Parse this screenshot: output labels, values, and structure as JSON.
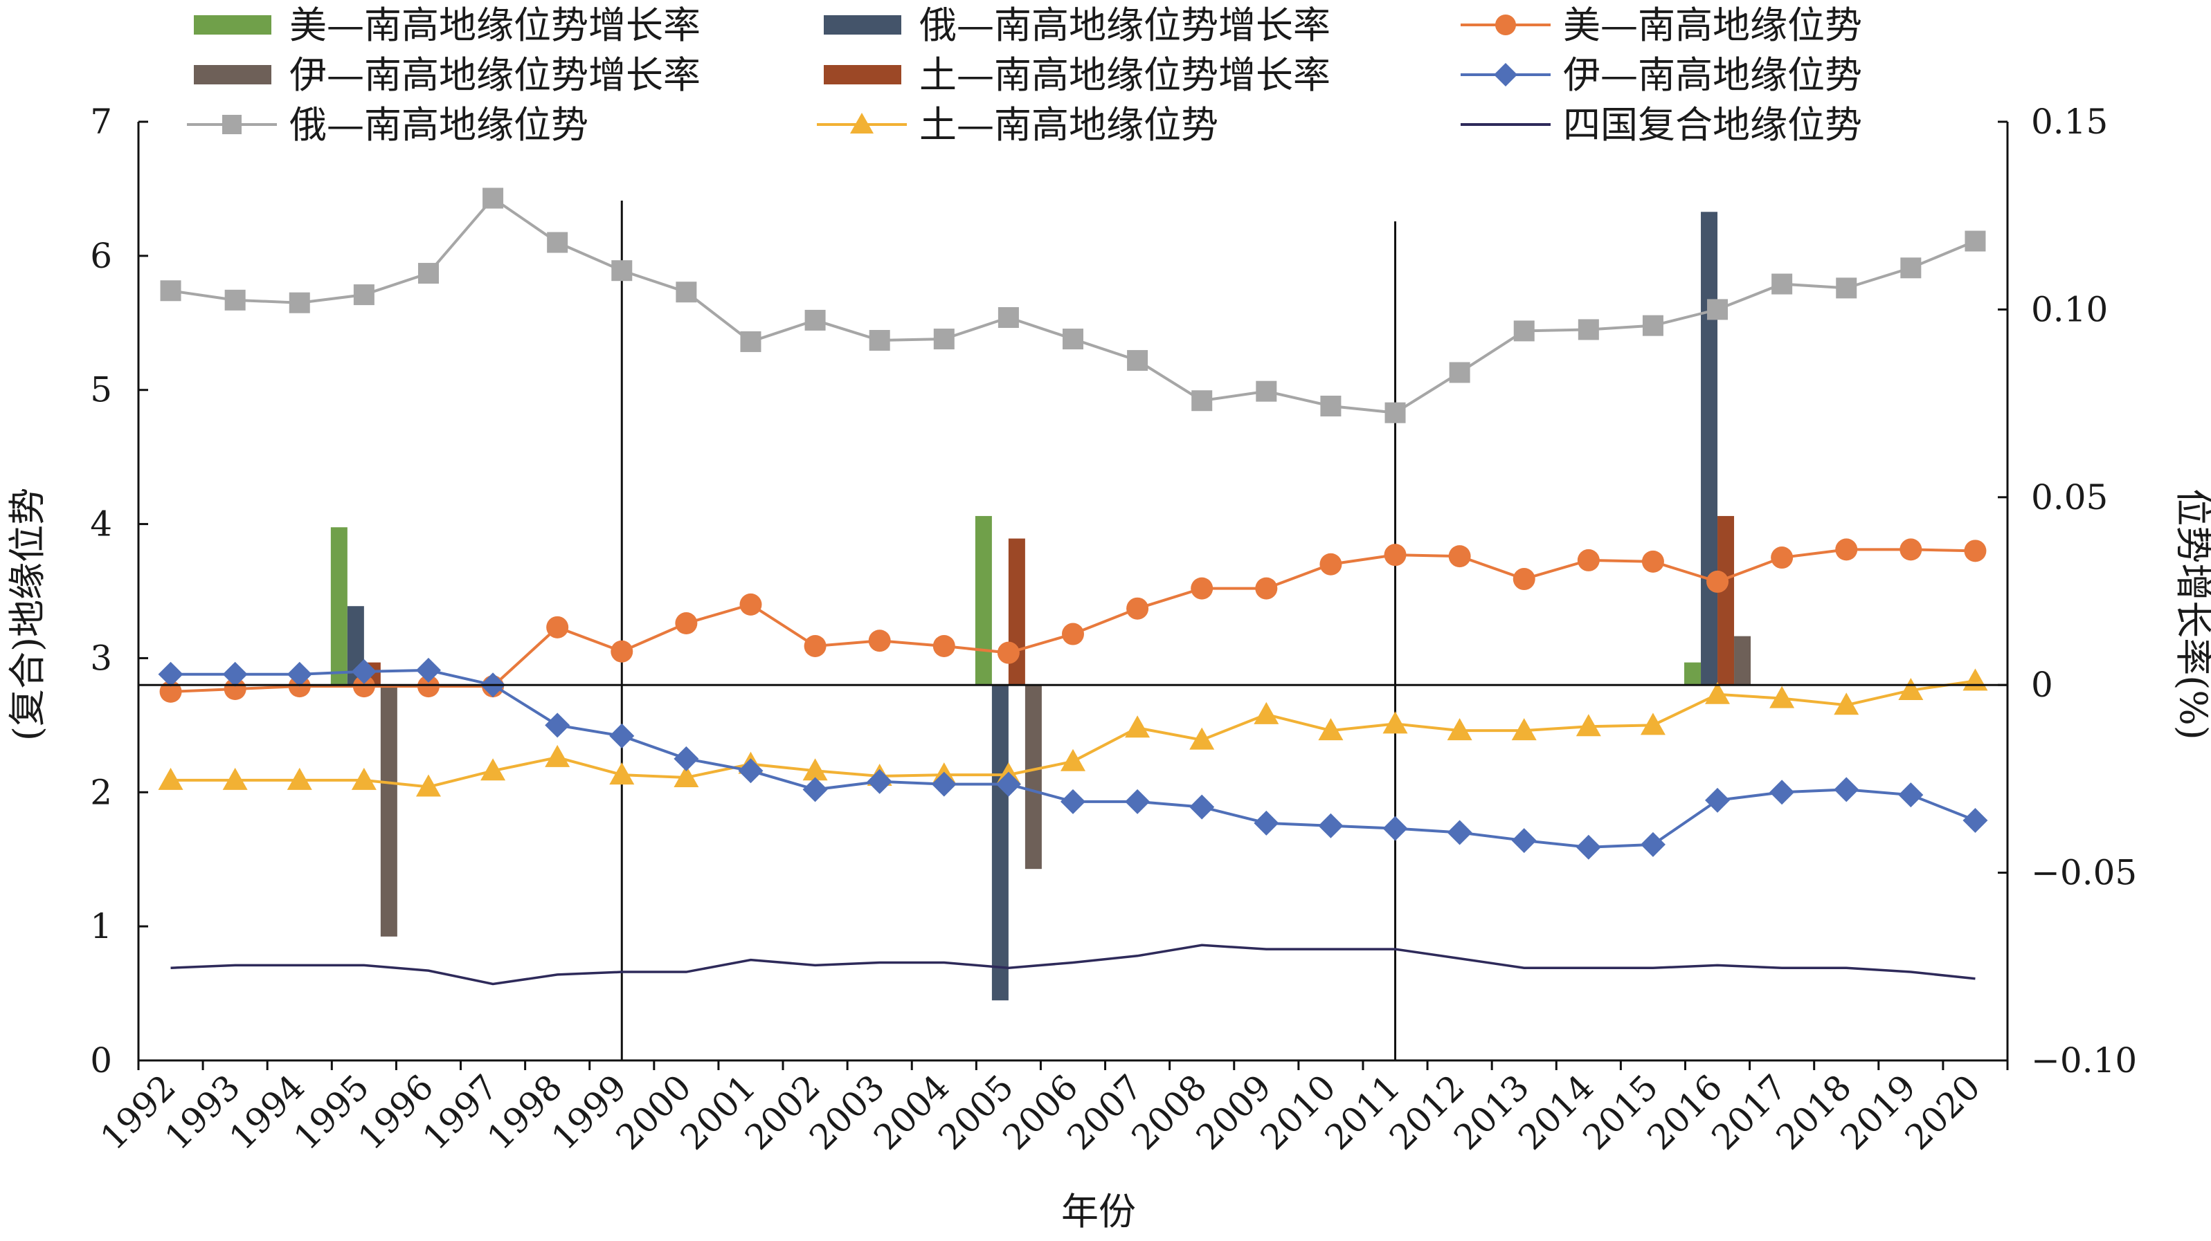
{
  "chart_data": {
    "type": "bar+line",
    "xlabel": "年份",
    "ylabel_left": "(复合)地缘位势",
    "ylabel_right": "位势增长率(%)",
    "ylim_left": [
      0,
      7
    ],
    "ylim_right": [
      -0.1,
      0.15
    ],
    "yticks_left": [
      "0",
      "1",
      "2",
      "3",
      "4",
      "5",
      "6",
      "7"
    ],
    "yticks_right": [
      "−0.10",
      "−0.05",
      "0",
      "0.05",
      "0.10",
      "0.15"
    ],
    "categories": [
      "1992",
      "1993",
      "1994",
      "1995",
      "1996",
      "1997",
      "1998",
      "1999",
      "2000",
      "2001",
      "2002",
      "2003",
      "2004",
      "2005",
      "2006",
      "2007",
      "2008",
      "2009",
      "2010",
      "2011",
      "2012",
      "2013",
      "2014",
      "2015",
      "2016",
      "2017",
      "2018",
      "2019",
      "2020"
    ],
    "reference_lines": [
      "1999",
      "2011"
    ],
    "legend_placement": "top",
    "legend": [
      {
        "label": "美—南高地缘位势增长率",
        "kind": "bar",
        "color": "#70a04a"
      },
      {
        "label": "俄—南高地缘位势增长率",
        "kind": "bar",
        "color": "#44546a"
      },
      {
        "label": "美—南高地缘位势",
        "kind": "line",
        "marker": "circle",
        "color": "#e8793c"
      },
      {
        "label": "伊—南高地缘位势增长率",
        "kind": "bar",
        "color": "#6e6058"
      },
      {
        "label": "土—南高地缘位势增长率",
        "kind": "bar",
        "color": "#9c4826"
      },
      {
        "label": "伊—南高地缘位势",
        "kind": "line",
        "marker": "diamond",
        "color": "#4f6fb8"
      },
      {
        "label": "俄—南高地缘位势",
        "kind": "line",
        "marker": "square",
        "color": "#a6a6a6"
      },
      {
        "label": "土—南高地缘位势",
        "kind": "line",
        "marker": "triangle",
        "color": "#f2b134"
      },
      {
        "label": "四国复合地缘位势",
        "kind": "line",
        "marker": "none",
        "color": "#2e2a5a"
      }
    ],
    "bar_series": [
      {
        "name": "美—南高地缘位势增长率",
        "color": "#70a04a",
        "offset": -1.5,
        "points": [
          {
            "x": "1995",
            "y": 0.042
          },
          {
            "x": "2005",
            "y": 0.045
          },
          {
            "x": "2016",
            "y": 0.006
          }
        ]
      },
      {
        "name": "俄—南高地缘位势增长率",
        "color": "#44546a",
        "offset": -0.5,
        "points": [
          {
            "x": "1995",
            "y": 0.021
          },
          {
            "x": "2005",
            "y": -0.084
          },
          {
            "x": "2016",
            "y": 0.126
          }
        ]
      },
      {
        "name": "土—南高地缘位势增长率",
        "color": "#9c4826",
        "offset": 0.5,
        "points": [
          {
            "x": "1995",
            "y": 0.006
          },
          {
            "x": "2005",
            "y": 0.039
          },
          {
            "x": "2016",
            "y": 0.045
          }
        ]
      },
      {
        "name": "伊—南高地缘位势增长率",
        "color": "#6e6058",
        "offset": 1.5,
        "points": [
          {
            "x": "1995",
            "y": -0.067
          },
          {
            "x": "2005",
            "y": -0.049
          },
          {
            "x": "2016",
            "y": 0.013
          }
        ]
      }
    ],
    "line_series": [
      {
        "name": "俄—南高地缘位势",
        "color": "#a6a6a6",
        "marker": "square",
        "values": [
          5.74,
          5.67,
          5.65,
          5.71,
          5.87,
          6.43,
          6.1,
          5.89,
          5.73,
          5.36,
          5.52,
          5.37,
          5.38,
          5.54,
          5.38,
          5.22,
          4.92,
          4.99,
          4.88,
          4.83,
          5.13,
          5.44,
          5.45,
          5.48,
          5.6,
          5.79,
          5.76,
          5.91,
          6.11
        ]
      },
      {
        "name": "美—南高地缘位势",
        "color": "#e8793c",
        "marker": "circle",
        "values": [
          2.75,
          2.77,
          2.79,
          2.79,
          2.79,
          2.79,
          3.23,
          3.05,
          3.26,
          3.4,
          3.09,
          3.13,
          3.09,
          3.04,
          3.18,
          3.37,
          3.52,
          3.52,
          3.7,
          3.77,
          3.76,
          3.59,
          3.73,
          3.72,
          3.57,
          3.75,
          3.81,
          3.81,
          3.8
        ]
      },
      {
        "name": "土—南高地缘位势",
        "color": "#f2b134",
        "marker": "triangle",
        "values": [
          2.09,
          2.09,
          2.09,
          2.09,
          2.04,
          2.16,
          2.26,
          2.13,
          2.11,
          2.21,
          2.16,
          2.12,
          2.13,
          2.13,
          2.23,
          2.48,
          2.39,
          2.58,
          2.46,
          2.51,
          2.46,
          2.46,
          2.49,
          2.5,
          2.73,
          2.7,
          2.65,
          2.76,
          2.83
        ]
      },
      {
        "name": "伊—南高地缘位势",
        "color": "#4f6fb8",
        "marker": "diamond",
        "values": [
          2.88,
          2.88,
          2.88,
          2.9,
          2.91,
          2.8,
          2.5,
          2.42,
          2.25,
          2.16,
          2.02,
          2.08,
          2.06,
          2.06,
          1.93,
          1.93,
          1.89,
          1.77,
          1.75,
          1.73,
          1.7,
          1.64,
          1.59,
          1.61,
          1.94,
          2.0,
          2.02,
          1.98,
          1.79
        ]
      },
      {
        "name": "四国复合地缘位势",
        "color": "#2e2a5a",
        "marker": "none",
        "values": [
          0.69,
          0.71,
          0.71,
          0.71,
          0.67,
          0.57,
          0.64,
          0.66,
          0.66,
          0.75,
          0.71,
          0.73,
          0.73,
          0.69,
          0.73,
          0.78,
          0.86,
          0.83,
          0.83,
          0.83,
          0.76,
          0.69,
          0.69,
          0.69,
          0.71,
          0.69,
          0.69,
          0.66,
          0.61
        ]
      }
    ]
  }
}
